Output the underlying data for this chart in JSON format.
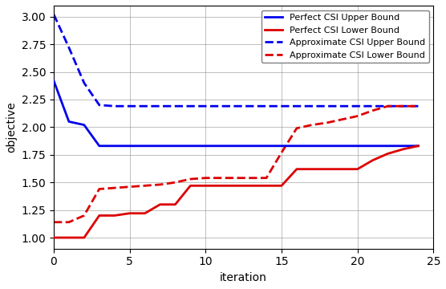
{
  "perfect_upper": {
    "x": [
      0,
      1,
      2,
      3,
      4,
      5,
      6,
      7,
      8,
      9,
      10,
      11,
      12,
      13,
      14,
      15,
      16,
      17,
      18,
      19,
      20,
      21,
      22,
      23,
      24
    ],
    "y": [
      2.42,
      2.05,
      2.02,
      1.83,
      1.83,
      1.83,
      1.83,
      1.83,
      1.83,
      1.83,
      1.83,
      1.83,
      1.83,
      1.83,
      1.83,
      1.83,
      1.83,
      1.83,
      1.83,
      1.83,
      1.83,
      1.83,
      1.83,
      1.83,
      1.83
    ]
  },
  "perfect_lower": {
    "x": [
      0,
      1,
      2,
      3,
      4,
      5,
      6,
      7,
      8,
      9,
      10,
      11,
      12,
      13,
      14,
      15,
      16,
      17,
      18,
      19,
      20,
      21,
      22,
      23,
      24
    ],
    "y": [
      1.0,
      1.0,
      1.0,
      1.2,
      1.2,
      1.22,
      1.22,
      1.3,
      1.3,
      1.47,
      1.47,
      1.47,
      1.47,
      1.47,
      1.47,
      1.47,
      1.62,
      1.62,
      1.62,
      1.62,
      1.62,
      1.7,
      1.76,
      1.8,
      1.83
    ]
  },
  "approx_upper": {
    "x": [
      0,
      1,
      2,
      3,
      4,
      5,
      6,
      7,
      8,
      9,
      10,
      11,
      12,
      13,
      14,
      15,
      16,
      17,
      18,
      19,
      20,
      21,
      22,
      23,
      24
    ],
    "y": [
      3.02,
      2.72,
      2.4,
      2.2,
      2.19,
      2.19,
      2.19,
      2.19,
      2.19,
      2.19,
      2.19,
      2.19,
      2.19,
      2.19,
      2.19,
      2.19,
      2.19,
      2.19,
      2.19,
      2.19,
      2.19,
      2.19,
      2.19,
      2.19,
      2.19
    ]
  },
  "approx_lower": {
    "x": [
      0,
      1,
      2,
      3,
      4,
      5,
      6,
      7,
      8,
      9,
      10,
      11,
      12,
      13,
      14,
      15,
      16,
      17,
      18,
      19,
      20,
      21,
      22,
      23,
      24
    ],
    "y": [
      1.14,
      1.14,
      1.2,
      1.44,
      1.45,
      1.46,
      1.47,
      1.48,
      1.5,
      1.53,
      1.54,
      1.54,
      1.54,
      1.54,
      1.54,
      1.77,
      1.99,
      2.02,
      2.04,
      2.07,
      2.1,
      2.15,
      2.19,
      2.19,
      2.19
    ]
  },
  "xlim": [
    0,
    25
  ],
  "ylim": [
    0.9,
    3.1
  ],
  "xlabel": "iteration",
  "ylabel": "objective",
  "legend_labels": [
    "Perfect CSI Upper Bound",
    "Perfect CSI Lower Bound",
    "Approximate CSI Upper Bound",
    "Approximate CSI Lower Bound"
  ],
  "blue_color": "#0000ee",
  "red_color": "#dd0000",
  "linewidth": 2.0,
  "figsize": [
    5.56,
    3.6
  ],
  "dpi": 100
}
